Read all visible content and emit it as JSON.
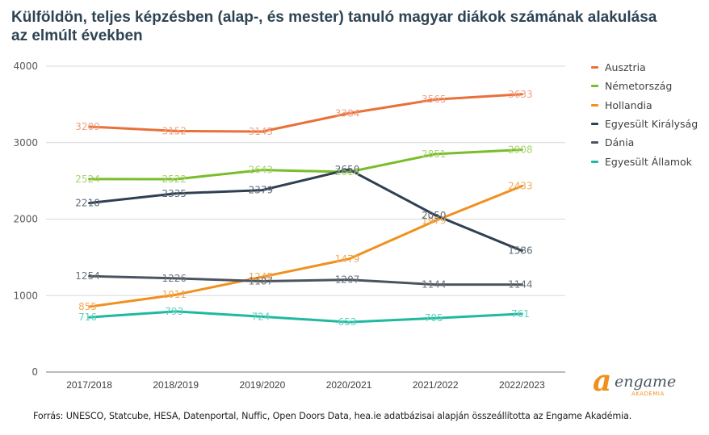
{
  "chart_data": {
    "type": "line",
    "title": "Külföldön, teljes képzésben (alap-, és mester) tanuló magyar diákok számának alakulása az elmúlt években",
    "xlabel": "",
    "ylabel": "",
    "categories": [
      "2017/2018",
      "2018/2019",
      "2019/2020",
      "2020/2021",
      "2021/2022",
      "2022/2023"
    ],
    "ylim": [
      0,
      4000
    ],
    "yticks": [
      0,
      1000,
      2000,
      3000,
      4000
    ],
    "grid": true,
    "legend_position": "right",
    "series": [
      {
        "name": "Ausztria",
        "color": "#e8703a",
        "label_color": "#f0a080",
        "values": [
          3209,
          3152,
          3145,
          3384,
          3565,
          3633
        ]
      },
      {
        "name": "Németország",
        "color": "#79bd2a",
        "label_color": "#a6d36f",
        "values": [
          2524,
          2522,
          2643,
          2616,
          2851,
          2908
        ]
      },
      {
        "name": "Hollandia",
        "color": "#f0901e",
        "label_color": "#f2aa5a",
        "values": [
          855,
          1011,
          1245,
          1479,
          1979,
          2433
        ]
      },
      {
        "name": "Egyesült Királyság",
        "color": "#2f4052",
        "label_color": "#5d6b78",
        "values": [
          2210,
          2335,
          2379,
          2650,
          2050,
          1586
        ]
      },
      {
        "name": "Dánia",
        "color": "#4a5560",
        "label_color": "#6b737b",
        "values": [
          1254,
          1226,
          1187,
          1207,
          1144,
          1144
        ]
      },
      {
        "name": "Egyesült Államok",
        "color": "#1fb9a0",
        "label_color": "#5fcfbd",
        "values": [
          716,
          793,
          724,
          653,
          705,
          761
        ]
      }
    ]
  },
  "source": "Forrás: UNESCO, Statcube, HESA, Datenportal, Nuffic, Open Doors Data, hea.ie adatbázisai alapján összeállította az Engame Akadémia.",
  "logo": {
    "mark": "a",
    "word": "engame",
    "sub": "AKADÉMIA"
  }
}
